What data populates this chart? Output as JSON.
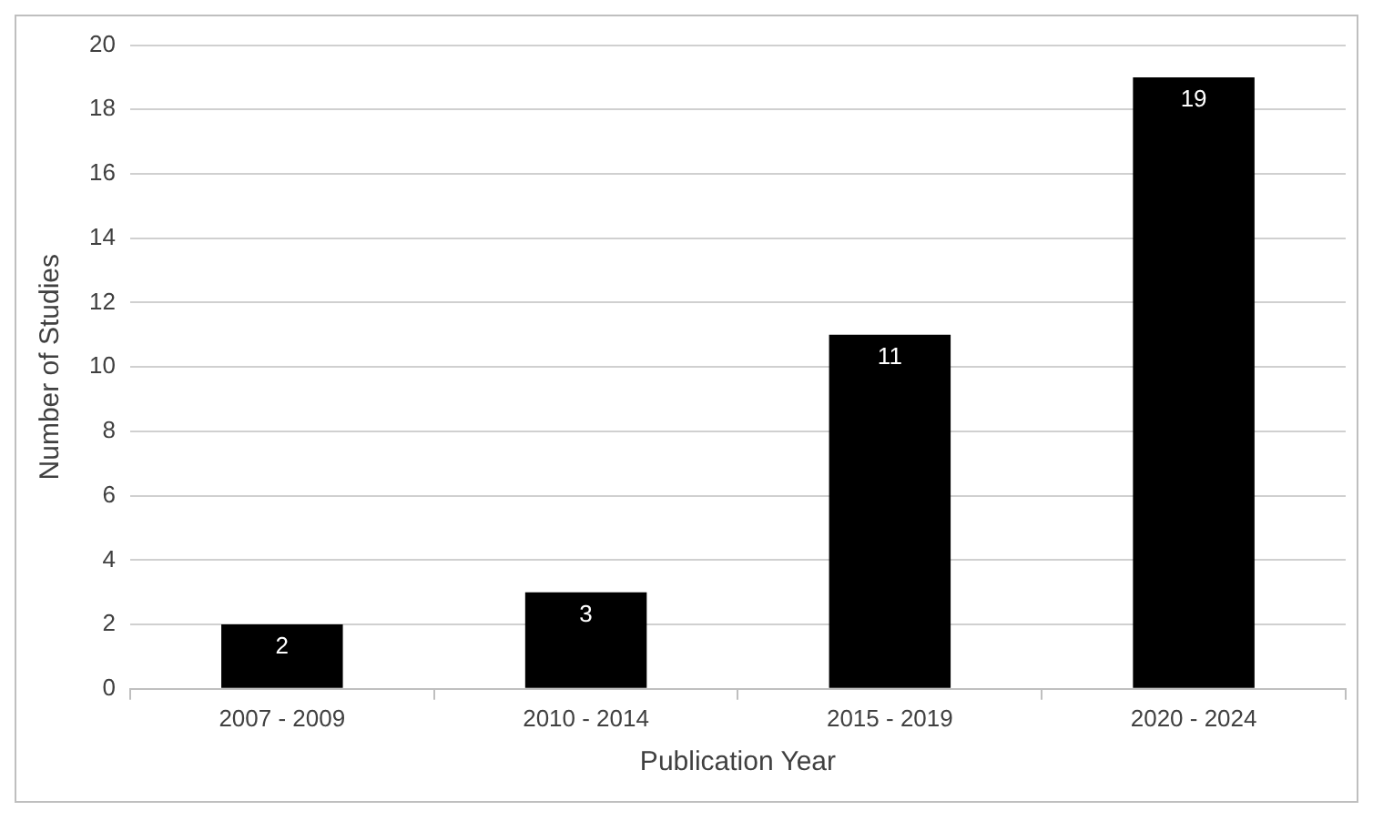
{
  "chart_data": {
    "type": "bar",
    "xlabel": "Publication Year",
    "ylabel": "Number of Studies",
    "categories": [
      "2007 - 2009",
      "2010 - 2014",
      "2015 - 2019",
      "2020 - 2024"
    ],
    "values": [
      2,
      3,
      11,
      19
    ],
    "color": "#000000",
    "ylim": [
      0,
      20
    ],
    "yticks": [
      0,
      2,
      4,
      6,
      8,
      10,
      12,
      14,
      16,
      18,
      20
    ],
    "grid": "y",
    "legend": false,
    "data_labels": true
  }
}
